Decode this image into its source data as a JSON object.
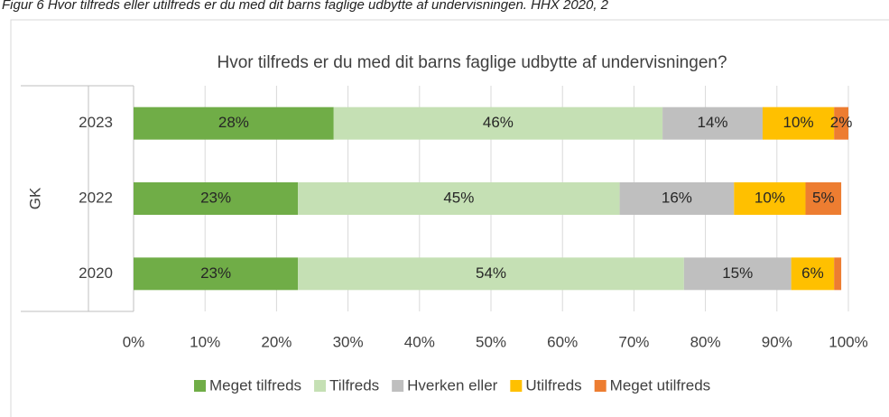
{
  "chart_data": {
    "type": "stacked-bar-horizontal",
    "caption": "Figur 6 Hvor tilfreds eller utilfreds er du med dit barns faglige udbytte af undervisningen. HHX 2020, 2",
    "title": "Hvor tilfreds er du med dit barns faglige udbytte af undervisningen?",
    "group_label": "GK",
    "categories": [
      "2023",
      "2022",
      "2020"
    ],
    "series": [
      {
        "name": "Meget tilfreds",
        "color": "#70ad47",
        "values": [
          28,
          23,
          23
        ],
        "value_labels": [
          "28%",
          "23%",
          "23%"
        ]
      },
      {
        "name": "Tilfreds",
        "color": "#c5e0b4",
        "values": [
          46,
          45,
          54
        ],
        "value_labels": [
          "46%",
          "45%",
          "54%"
        ]
      },
      {
        "name": "Hverken eller",
        "color": "#bfbfbf",
        "values": [
          14,
          16,
          15
        ],
        "value_labels": [
          "14%",
          "16%",
          "15%"
        ]
      },
      {
        "name": "Utilfreds",
        "color": "#ffc000",
        "values": [
          10,
          10,
          6
        ],
        "value_labels": [
          "10%",
          "10%",
          "6%"
        ]
      },
      {
        "name": "Meget utilfreds",
        "color": "#ed7d31",
        "values": [
          2,
          5,
          1
        ],
        "value_labels": [
          "2%",
          "5%",
          null
        ]
      }
    ],
    "xlim": [
      0,
      100
    ],
    "xticks": [
      {
        "value": 0,
        "label": "0%"
      },
      {
        "value": 10,
        "label": "10%"
      },
      {
        "value": 20,
        "label": "20%"
      },
      {
        "value": 30,
        "label": "30%"
      },
      {
        "value": 40,
        "label": "40%"
      },
      {
        "value": 50,
        "label": "50%"
      },
      {
        "value": 60,
        "label": "60%"
      },
      {
        "value": 70,
        "label": "70%"
      },
      {
        "value": 80,
        "label": "80%"
      },
      {
        "value": 90,
        "label": "90%"
      },
      {
        "value": 100,
        "label": "100%"
      }
    ],
    "grid": true
  }
}
